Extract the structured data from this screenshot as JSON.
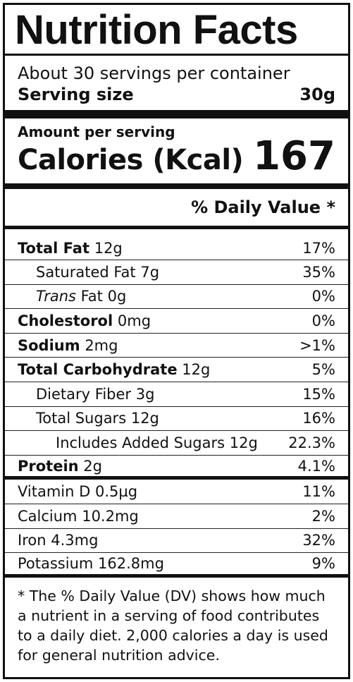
{
  "title": "Nutrition Facts",
  "servings": {
    "per_container": "About 30 servings per container",
    "size_label": "Serving size",
    "size_value": "30g"
  },
  "calories": {
    "amount_label": "Amount per serving",
    "label": "Calories (Kcal)",
    "value": "167"
  },
  "dv_header": "% Daily Value *",
  "nutrients": [
    {
      "name": "Total Fat",
      "amount": "12g",
      "dv": "17%"
    },
    {
      "name": "Saturated Fat",
      "amount": "7g",
      "dv": "35%"
    },
    {
      "name_italic": "Trans",
      "name": "Fat",
      "amount": "0g",
      "dv": "0%"
    },
    {
      "name": "Cholestorol",
      "amount": "0mg",
      "dv": "0%"
    },
    {
      "name": "Sodium",
      "amount": "2mg",
      "dv": ">1%"
    },
    {
      "name": "Total Carbohydrate",
      "amount": "12g",
      "dv": "5%"
    },
    {
      "name": "Dietary Fiber",
      "amount": "3g",
      "dv": "15%"
    },
    {
      "name": "Total Sugars",
      "amount": "12g",
      "dv": "16%"
    },
    {
      "name": "Includes Added Sugars",
      "amount": "12g",
      "dv": "22.3%"
    },
    {
      "name": "Protein",
      "amount": "2g",
      "dv": "4.1%"
    }
  ],
  "micronutrients": [
    {
      "name": "Vitamin D",
      "amount": "0.5µg",
      "dv": "11%"
    },
    {
      "name": "Calcium",
      "amount": "10.2mg",
      "dv": "2%"
    },
    {
      "name": "Iron",
      "amount": "4.3mg",
      "dv": "32%"
    },
    {
      "name": "Potassium",
      "amount": "162.8mg",
      "dv": "9%"
    }
  ],
  "footnote": "* The % Daily Value (DV) shows how much a nutrient in a serving of food contributes to a daily diet. 2,000 calories a day is used for general nutrition advice."
}
